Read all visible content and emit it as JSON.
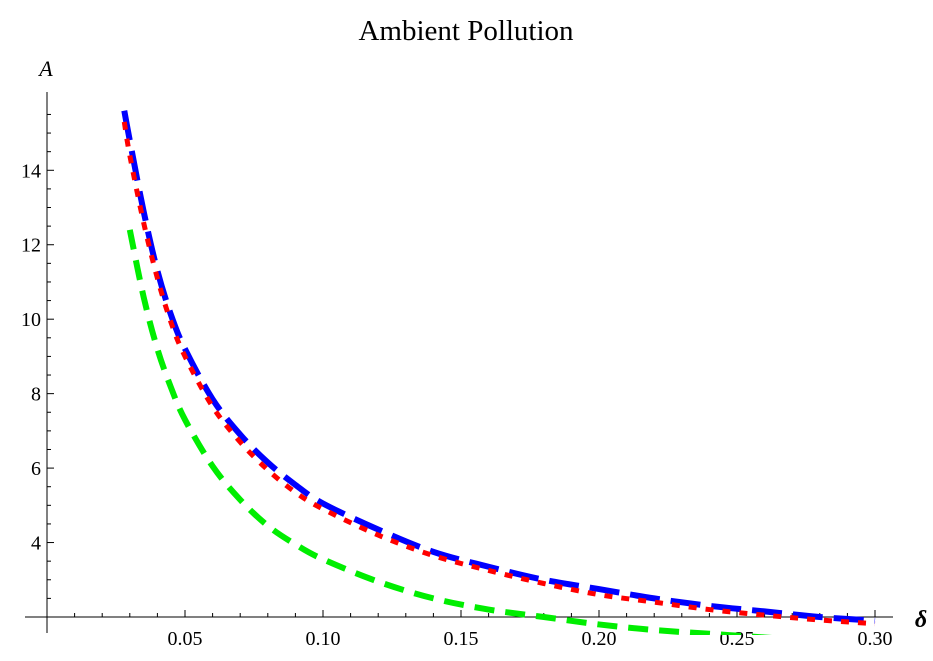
{
  "chart_data": {
    "type": "line",
    "title": "Ambient Pollution",
    "xlabel": "δ",
    "ylabel": "A",
    "xlim": [
      0.0,
      0.3
    ],
    "ylim": [
      2.0,
      15.7
    ],
    "x_origin": 0.0,
    "y_origin": 2.0,
    "x_ticks": [
      0.05,
      0.1,
      0.15,
      0.2,
      0.25,
      0.3
    ],
    "x_tick_labels": [
      "0.05",
      "0.10",
      "0.15",
      "0.20",
      "0.25",
      "0.30"
    ],
    "y_ticks": [
      4,
      6,
      8,
      10,
      12,
      14
    ],
    "y_tick_labels": [
      "4",
      "6",
      "8",
      "10",
      "12",
      "14"
    ],
    "grid": false,
    "legend": "none",
    "series": [
      {
        "color": "#0000ff",
        "dash": "long-dash",
        "x": [
          0.028,
          0.03,
          0.035,
          0.04,
          0.045,
          0.05,
          0.06,
          0.07,
          0.08,
          0.09,
          0.1,
          0.12,
          0.14,
          0.16,
          0.18,
          0.2,
          0.22,
          0.24,
          0.26,
          0.28,
          0.3
        ],
        "y": [
          15.6,
          14.8,
          12.9,
          11.3,
          10.1,
          9.2,
          7.85,
          6.9,
          6.15,
          5.55,
          5.05,
          4.35,
          3.75,
          3.35,
          3.0,
          2.75,
          2.5,
          2.3,
          2.15,
          2.0,
          1.9
        ]
      },
      {
        "color": "#ff0000",
        "dash": "dotted",
        "x": [
          0.028,
          0.03,
          0.035,
          0.04,
          0.045,
          0.05,
          0.06,
          0.07,
          0.08,
          0.09,
          0.1,
          0.12,
          0.14,
          0.16,
          0.18,
          0.2,
          0.22,
          0.24,
          0.26,
          0.28,
          0.3
        ],
        "y": [
          15.3,
          14.4,
          12.6,
          11.1,
          9.9,
          9.0,
          7.65,
          6.7,
          5.95,
          5.35,
          4.9,
          4.2,
          3.65,
          3.25,
          2.9,
          2.6,
          2.4,
          2.2,
          2.05,
          1.92,
          1.82
        ]
      },
      {
        "color": "#00ee00",
        "dash": "dashed",
        "x": [
          0.03,
          0.035,
          0.04,
          0.045,
          0.05,
          0.06,
          0.07,
          0.08,
          0.09,
          0.1,
          0.12,
          0.14,
          0.16,
          0.18,
          0.2,
          0.22,
          0.24,
          0.26,
          0.27
        ],
        "y": [
          12.4,
          10.6,
          9.2,
          8.15,
          7.3,
          6.05,
          5.15,
          4.45,
          3.95,
          3.55,
          2.95,
          2.5,
          2.2,
          2.0,
          1.8,
          1.65,
          1.55,
          1.45,
          1.4
        ]
      }
    ]
  }
}
